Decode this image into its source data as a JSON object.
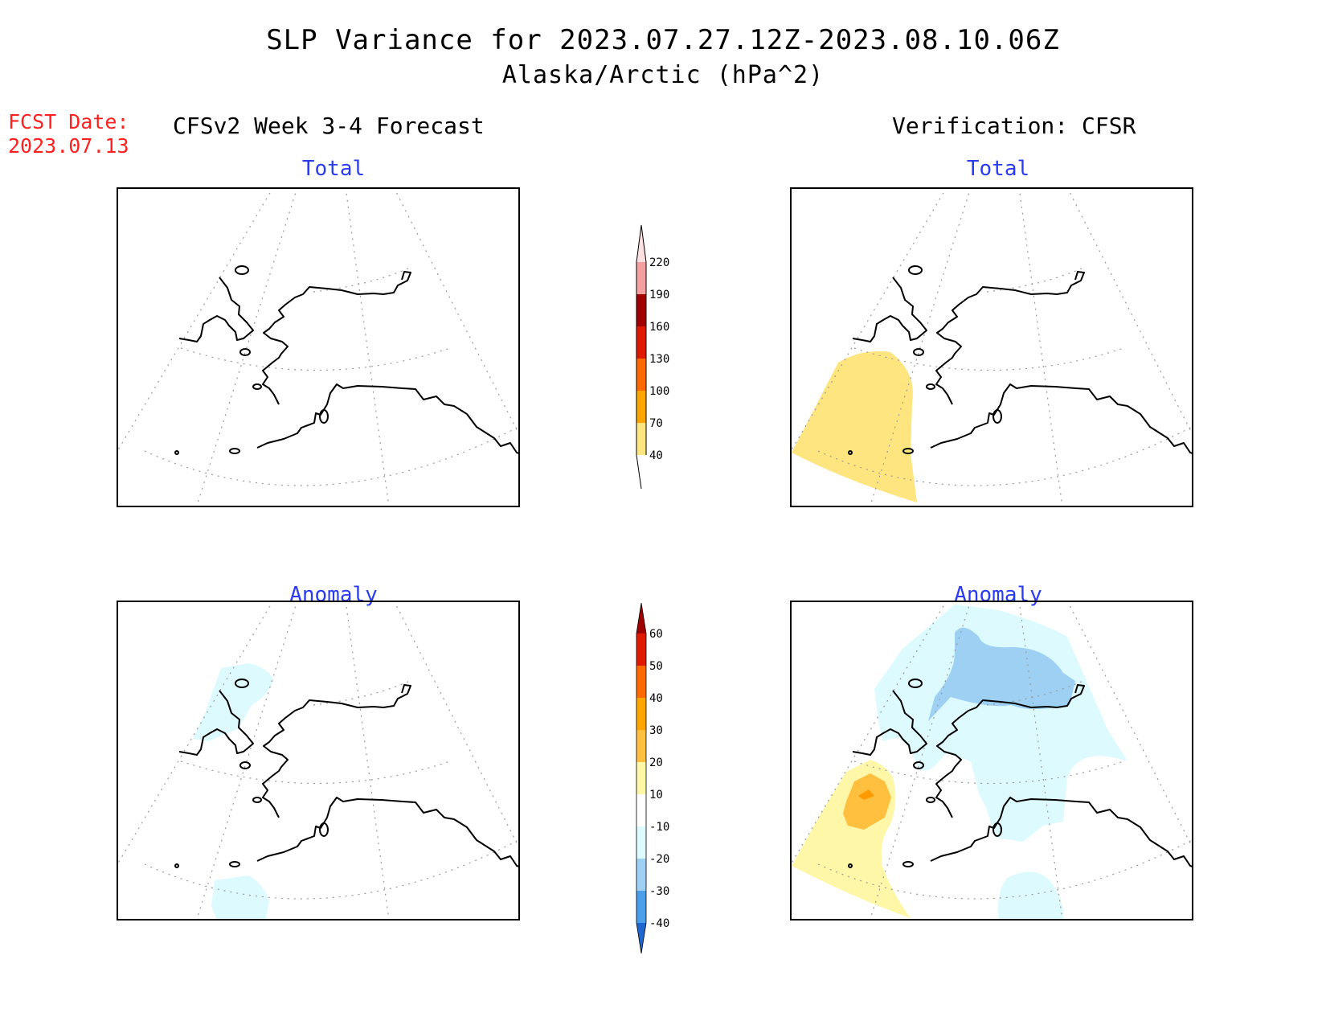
{
  "header": {
    "title_line1": "SLP Variance for 2023.07.27.12Z-2023.08.10.06Z",
    "title_line2": "Alaska/Arctic (hPa^2)",
    "fcst_label": "FCST Date:",
    "fcst_date": "2023.07.13",
    "left_column": "CFSv2 Week 3-4 Forecast",
    "right_column": "Verification: CFSR"
  },
  "panels": {
    "forecast_total": {
      "title": "Total"
    },
    "verification_total": {
      "title": "Total"
    },
    "forecast_anomaly": {
      "title": "Anomaly"
    },
    "verification_anomaly": {
      "title": "Anomaly"
    }
  },
  "colorbars": {
    "total": {
      "labels": [
        "220",
        "190",
        "160",
        "130",
        "100",
        "70",
        "40"
      ],
      "colors": {
        "40-70": "#ffe57f",
        "70-100": "#ffa500",
        "100-130": "#ff6a00",
        "130-160": "#e01a00",
        "160-190": "#a00000",
        "190-220": "#f4a0a0",
        "220+": "#fde0e0"
      }
    },
    "anomaly": {
      "labels": [
        "60",
        "50",
        "40",
        "30",
        "20",
        "10",
        "-10",
        "-20",
        "-30",
        "-40"
      ],
      "colors": {
        "60+": "#a00000",
        "50-60": "#e01a00",
        "40-50": "#ff6a00",
        "30-40": "#ffa500",
        "20-30": "#ffc040",
        "10-20": "#fff7a8",
        "-10-10": "#ffffff",
        "-20--10": "#ddfbff",
        "-30--20": "#9ed0f4",
        "-40--30": "#4a9fe8",
        "below -40": "#1e66d0"
      }
    }
  }
}
